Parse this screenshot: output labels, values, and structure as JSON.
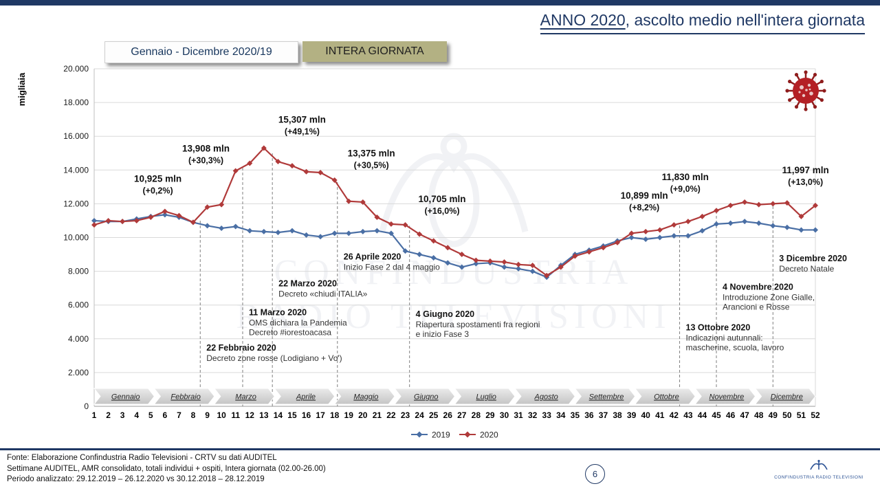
{
  "slide": {
    "title_highlight": "ANNO 2020",
    "title_rest": ", ascolto medio nell'intera giornata"
  },
  "buttons": {
    "period": "Gennaio - Dicembre 2020/19",
    "daypart": "INTERA GIORNATA"
  },
  "watermark": {
    "line1": "CONFINDUSTRIA",
    "line2": "RADIO TELEVISIONI"
  },
  "chart_data": {
    "type": "line",
    "ylabel": "migliaia",
    "ylim": [
      0,
      20000
    ],
    "ytick_step": 2000,
    "grid": true,
    "legend_position": "bottom-center",
    "weeks": [
      1,
      2,
      3,
      4,
      5,
      6,
      7,
      8,
      9,
      10,
      11,
      12,
      13,
      14,
      15,
      16,
      17,
      18,
      19,
      20,
      21,
      22,
      23,
      24,
      25,
      26,
      27,
      28,
      29,
      30,
      31,
      32,
      33,
      34,
      35,
      36,
      37,
      38,
      39,
      40,
      41,
      42,
      43,
      44,
      45,
      46,
      47,
      48,
      49,
      50,
      51,
      52
    ],
    "months": [
      "Gennaio",
      "Febbraio",
      "Marzo",
      "Aprile",
      "Maggio",
      "Giugno",
      "Luglio",
      "Agosto",
      "Settembre",
      "Ottobre",
      "Novembre",
      "Dicembre"
    ],
    "series": [
      {
        "name": "2019",
        "color": "#4a6fa5",
        "values": [
          11000,
          10950,
          10950,
          11100,
          11250,
          11350,
          11200,
          10900,
          10700,
          10550,
          10650,
          10400,
          10350,
          10300,
          10400,
          10150,
          10050,
          10250,
          10250,
          10350,
          10400,
          10250,
          9200,
          9000,
          8800,
          8500,
          8250,
          8450,
          8500,
          8250,
          8150,
          8000,
          7650,
          8350,
          9000,
          9250,
          9500,
          9800,
          10000,
          9900,
          10000,
          10100,
          10100,
          10400,
          10800,
          10850,
          10950,
          10850,
          10700,
          10600,
          10450,
          10450
        ]
      },
      {
        "name": "2020",
        "color": "#b03a3a",
        "values": [
          10750,
          11000,
          10950,
          11000,
          11200,
          11550,
          11300,
          10900,
          11800,
          11950,
          13950,
          14400,
          15300,
          14500,
          14250,
          13900,
          13850,
          13400,
          12150,
          12100,
          11200,
          10800,
          10750,
          10200,
          9800,
          9400,
          9000,
          8650,
          8600,
          8550,
          8400,
          8350,
          7750,
          8250,
          8900,
          9150,
          9400,
          9700,
          10250,
          10350,
          10450,
          10750,
          10950,
          11250,
          11600,
          11900,
          12100,
          11950,
          12000,
          12050,
          11250,
          11900
        ]
      }
    ],
    "callouts": [
      {
        "value": "10,925 mln",
        "pct": "(+0,2%)",
        "week": 5.5,
        "y": 13300
      },
      {
        "value": "13,908 mln",
        "pct": "(+30,3%)",
        "week": 8.9,
        "y": 15100
      },
      {
        "value": "15,307 mln",
        "pct": "(+49,1%)",
        "week": 15.7,
        "y": 16800
      },
      {
        "value": "13,375 mln",
        "pct": "(+30,5%)",
        "week": 20.6,
        "y": 14800
      },
      {
        "value": "10,705 mln",
        "pct": "(+16,0%)",
        "week": 25.6,
        "y": 12100
      },
      {
        "value": "10,899 mln",
        "pct": "(+8,2%)",
        "week": 39.9,
        "y": 12300
      },
      {
        "value": "11,830 mln",
        "pct": "(+9,0%)",
        "week": 42.8,
        "y": 13400
      },
      {
        "value": "11,997 mln",
        "pct": "(+13,0%)",
        "week": 51.3,
        "y": 13800
      }
    ],
    "events": [
      {
        "date": "22 Febbraio 2020",
        "lines": [
          "Decreto zone rosse (Lodigiano + Vo')"
        ],
        "week": 8.5,
        "text_y": 3300,
        "line_top": 11100
      },
      {
        "date": "11 Marzo 2020",
        "lines": [
          "OMS dichiara la Pandemia",
          "Decreto #iorestoacasa"
        ],
        "week": 11.5,
        "text_y": 5400,
        "line_top": 14200
      },
      {
        "date": "22 Marzo 2020",
        "lines": [
          "Decreto «chiudi ITALIA»"
        ],
        "week": 13.6,
        "text_y": 7100,
        "line_top": 15000
      },
      {
        "date": "26 Aprile 2020",
        "lines": [
          "Inizio Fase 2 dal 4 maggio"
        ],
        "week": 18.2,
        "text_y": 8700,
        "line_top": 13300
      },
      {
        "date": "4 Giugno 2020",
        "lines": [
          "Riapertura spostamenti fra regioni",
          "e inizio Fase 3"
        ],
        "week": 23.3,
        "text_y": 5300,
        "line_top": 10700
      },
      {
        "date": "13 Ottobre 2020",
        "lines": [
          "Indicazioni autunnali:",
          "mascherine, scuola, lavoro"
        ],
        "week": 42.4,
        "text_y": 4500,
        "line_top": 10800
      },
      {
        "date": "4 Novembre 2020",
        "lines": [
          "Introduzione Zone Gialle,",
          "Arancioni e Rosse"
        ],
        "week": 45.0,
        "text_y": 6900,
        "line_top": 11700
      },
      {
        "date": "3 Dicembre 2020",
        "lines": [
          "Decreto Natale"
        ],
        "week": 49.0,
        "text_y": 8600,
        "line_top": 12000
      }
    ]
  },
  "footer": {
    "line1": "Fonte: Elaborazione Confindustria Radio Televisioni - CRTV su dati AUDITEL",
    "line2": "Settimane AUDITEL, AMR consolidato, totali individui + ospiti, Intera giornata (02.00-26.00)",
    "line3": "Periodo analizzato: 29.12.2019 – 26.12.2020 vs 30.12.2018 – 28.12.2019",
    "page_number": "6",
    "logo_text": "CONFINDUSTRIA RADIO TELEVISIONI"
  },
  "colors": {
    "navy": "#1f3864",
    "grid": "#d9d9d9",
    "axis": "#9a9a9a",
    "dashed_line": "#7f7f7f",
    "virus_body": "#b42025",
    "virus_spike": "#8f1d1d",
    "virus_speckle": "#e9c7c7"
  }
}
